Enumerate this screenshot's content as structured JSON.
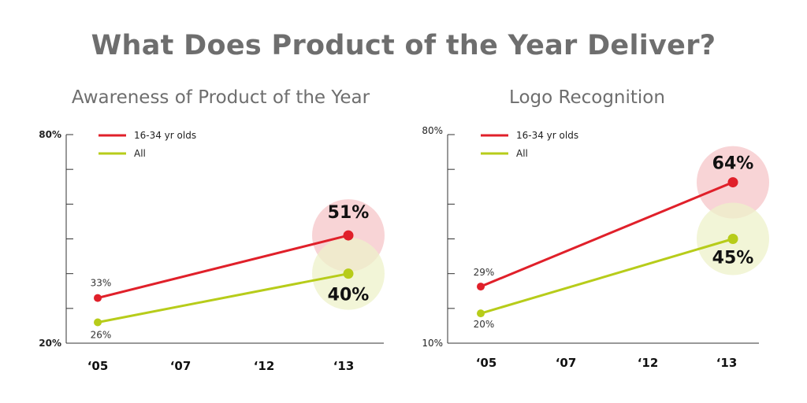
{
  "title": "What Does Product of the Year Deliver?",
  "chart_data": [
    {
      "type": "line",
      "title": "Awareness of Product of the Year",
      "categories": [
        "‘05",
        "‘07",
        "‘12",
        "‘13"
      ],
      "x": [
        0,
        3
      ],
      "ylim": [
        20,
        80
      ],
      "ytick_labels": [
        "20%",
        "80%"
      ],
      "series": [
        {
          "name": "16-34 yr olds",
          "color": "#e0202a",
          "bubble": "#f6c6c8",
          "values": [
            33,
            51
          ],
          "labels": [
            "33%",
            "51%"
          ]
        },
        {
          "name": "All",
          "color": "#b7cc1a",
          "bubble": "#eef1c9",
          "values": [
            26,
            40
          ],
          "labels": [
            "26%",
            "40%"
          ]
        }
      ]
    },
    {
      "type": "line",
      "title": "Logo Recognition",
      "categories": [
        "‘05",
        "‘07",
        "‘12",
        "‘13"
      ],
      "x": [
        0,
        3
      ],
      "ylim": [
        10,
        80
      ],
      "ytick_labels": [
        "10%",
        "80%"
      ],
      "series": [
        {
          "name": "16-34 yr olds",
          "color": "#e0202a",
          "bubble": "#f6c6c8",
          "values": [
            29,
            64
          ],
          "labels": [
            "29%",
            "64%"
          ]
        },
        {
          "name": "All",
          "color": "#b7cc1a",
          "bubble": "#eef1c9",
          "values": [
            20,
            45
          ],
          "labels": [
            "20%",
            "45%"
          ]
        }
      ]
    }
  ]
}
